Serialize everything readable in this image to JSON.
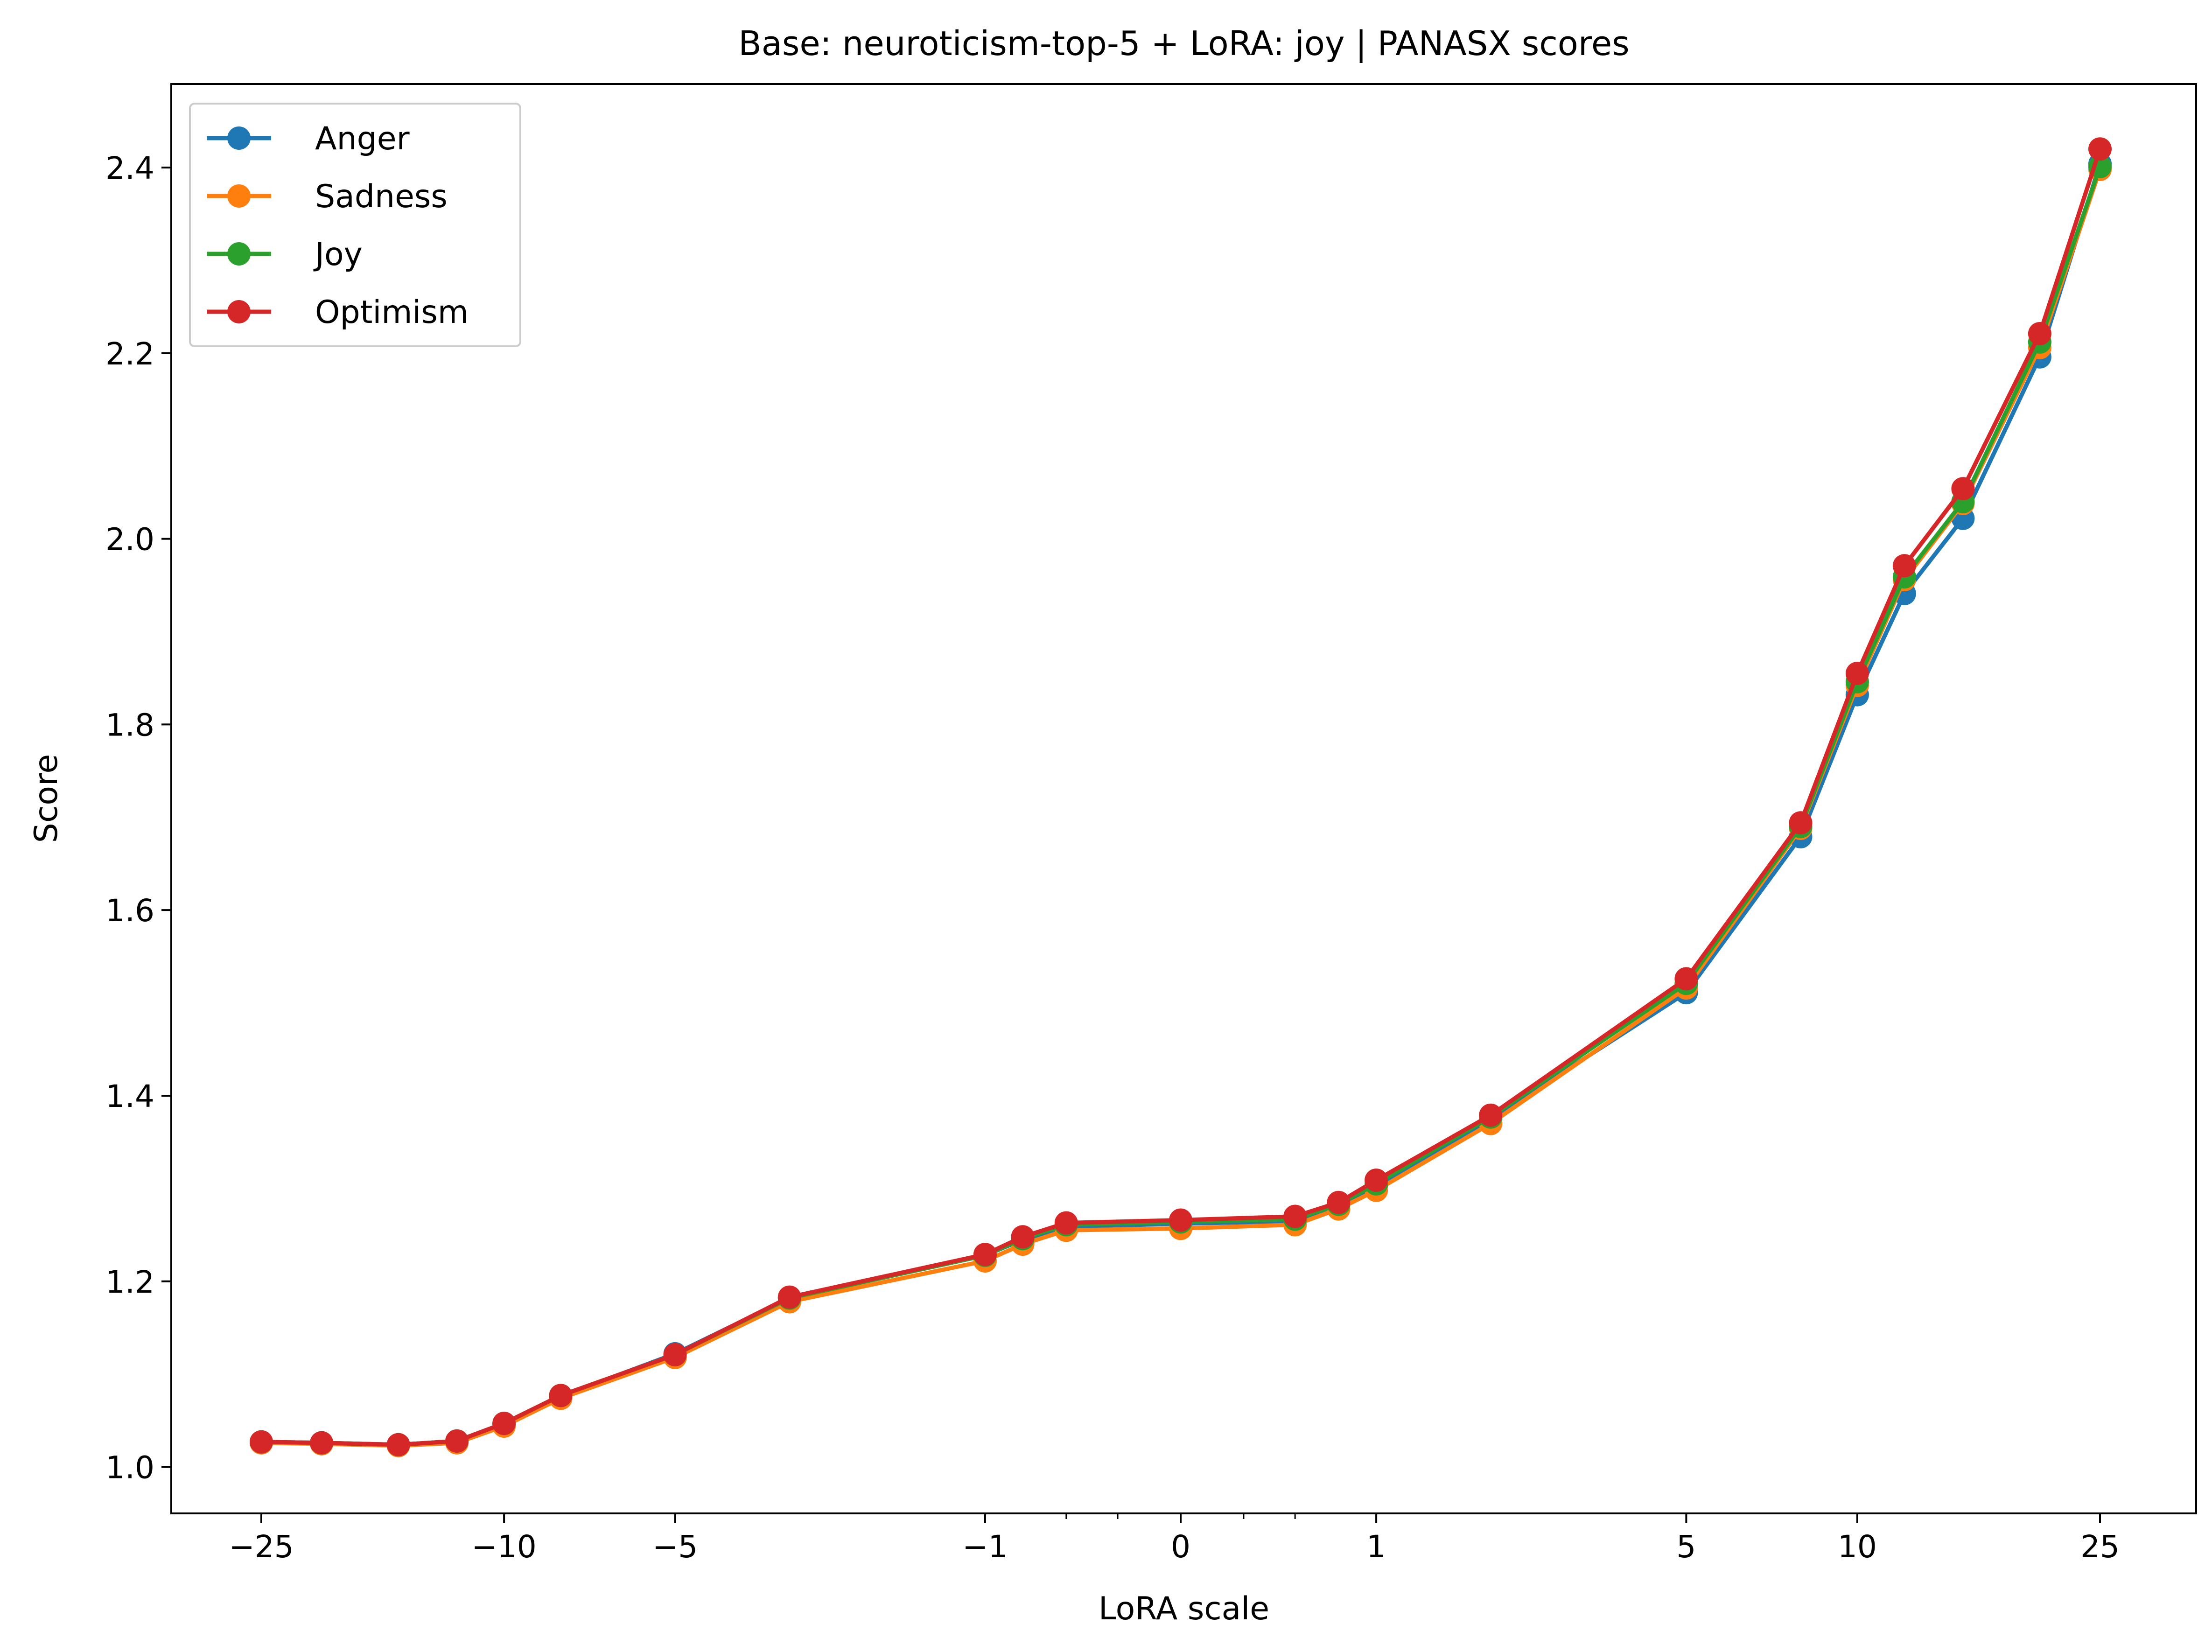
{
  "chart_data": {
    "type": "line",
    "title": "Base: neuroticism-top-5 + LoRA: joy | PANASX scores",
    "xlabel": "LoRA scale",
    "ylabel": "Score",
    "xscale": "symlog",
    "ylim": [
      0.95,
      2.49
    ],
    "yticks": [
      "1.0",
      "1.2",
      "1.4",
      "1.6",
      "1.8",
      "2.0",
      "2.2",
      "2.4"
    ],
    "xticks": [
      {
        "value": -25,
        "label": "−25"
      },
      {
        "value": -10,
        "label": "−10"
      },
      {
        "value": -5,
        "label": "−5"
      },
      {
        "value": -1,
        "label": "−1"
      },
      {
        "value": 0,
        "label": "0"
      },
      {
        "value": 1,
        "label": "1"
      },
      {
        "value": 5,
        "label": "5"
      },
      {
        "value": 10,
        "label": "10"
      },
      {
        "value": 25,
        "label": "25"
      }
    ],
    "grid": false,
    "legend": "top-left",
    "x": [
      -25,
      -20,
      -15,
      -12,
      -10,
      -8,
      -5,
      -3,
      -1,
      -0.75,
      -0.5,
      0,
      0.5,
      0.75,
      1,
      2,
      5,
      8,
      10,
      12,
      15,
      20,
      25
    ],
    "series": [
      {
        "name": "Anger",
        "color": "#1f77b4",
        "values": [
          1.027,
          1.026,
          1.024,
          1.028,
          1.046,
          1.076,
          1.122,
          1.182,
          1.228,
          1.245,
          1.259,
          1.262,
          1.265,
          1.282,
          1.303,
          1.375,
          1.511,
          1.679,
          1.832,
          1.941,
          2.022,
          2.196,
          2.404
        ]
      },
      {
        "name": "Sadness",
        "color": "#ff7f0e",
        "values": [
          1.026,
          1.025,
          1.023,
          1.026,
          1.044,
          1.074,
          1.118,
          1.178,
          1.222,
          1.24,
          1.255,
          1.257,
          1.261,
          1.278,
          1.298,
          1.37,
          1.516,
          1.688,
          1.842,
          1.956,
          2.038,
          2.206,
          2.398
        ]
      },
      {
        "name": "Joy",
        "color": "#2ca02c",
        "values": [
          1.027,
          1.026,
          1.024,
          1.028,
          1.047,
          1.077,
          1.121,
          1.182,
          1.228,
          1.246,
          1.261,
          1.264,
          1.267,
          1.283,
          1.305,
          1.377,
          1.521,
          1.69,
          1.846,
          1.959,
          2.04,
          2.212,
          2.401
        ]
      },
      {
        "name": "Optimism",
        "color": "#d62728",
        "values": [
          1.027,
          1.026,
          1.024,
          1.028,
          1.047,
          1.077,
          1.121,
          1.183,
          1.229,
          1.248,
          1.263,
          1.266,
          1.27,
          1.285,
          1.309,
          1.379,
          1.526,
          1.694,
          1.855,
          1.971,
          2.054,
          2.221,
          2.42
        ]
      }
    ]
  }
}
